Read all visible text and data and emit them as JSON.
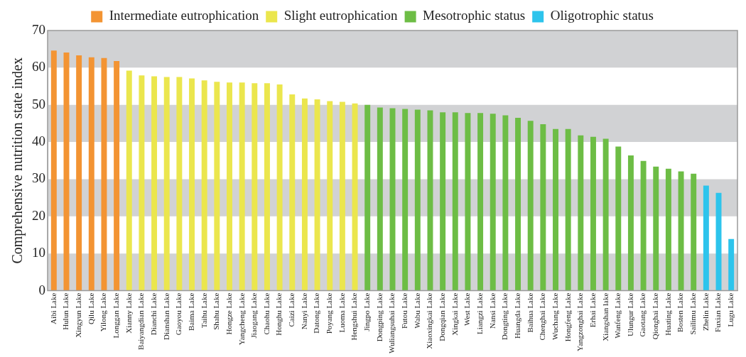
{
  "chart_data": {
    "type": "bar",
    "ylabel": "Comprehensive nutrition state index",
    "categories": [
      "Aibi Lake",
      "Hulun Lake",
      "Xingyun Lake",
      "Qilu Lake",
      "Yilong Lake",
      "Longgan Lake",
      "Xianny Lake",
      "Baiyangdian Lake",
      "Dianchi Lake",
      "Dianshan Lake",
      "Gaoyou Lake",
      "Baima Lake",
      "Taihu Lake",
      "Shahu Lake",
      "Hongze Lake",
      "Yangcheng Lake",
      "Jiaogang Lake",
      "Chaohu Lake",
      "Honghu Lake",
      "Caizi Lake",
      "Nanyi Lake",
      "Datong Lake",
      "Poyang Lake",
      "Luoma Lake",
      "Hengshui Lake",
      "Jingpo Lake",
      "Dongping Lake",
      "Wuliangsuhai Lake",
      "Futou Lake",
      "Wabu Lake",
      "Xiaoxingkai Lake",
      "Dongqian Lake",
      "Xingkai Lake",
      "West Lake",
      "Liangzi Lake",
      "Nansi Lake",
      "Dongting Lake",
      "Huangda Lake",
      "Baihua Lake",
      "Chenghai Lake",
      "Wuchang Lake",
      "Hongfeng Lake",
      "Yangzonghai Lake",
      "Erhai Lake",
      "Xiangshan lake",
      "Wanfeng Lake",
      "Ulungur Lake",
      "Gaotang Lake",
      "Qionghai Lake",
      "Huating Lake",
      "Bosten Lake",
      "Sailimu Lake",
      "Zhelin Lake",
      "Fuxian Lake",
      "Lugu Lake"
    ],
    "series": [
      {
        "name": "Intermediate eutrophication",
        "color": "#f39433",
        "values": [
          64.6,
          64.1,
          63.3,
          62.8,
          62.6,
          61.8,
          null,
          null,
          null,
          null,
          null,
          null,
          null,
          null,
          null,
          null,
          null,
          null,
          null,
          null,
          null,
          null,
          null,
          null,
          null,
          null,
          null,
          null,
          null,
          null,
          null,
          null,
          null,
          null,
          null,
          null,
          null,
          null,
          null,
          null,
          null,
          null,
          null,
          null,
          null,
          null,
          null,
          null,
          null,
          null,
          null,
          null,
          null,
          null,
          null
        ]
      },
      {
        "name": "Slight eutrophication",
        "color": "#ebe64d",
        "values": [
          null,
          null,
          null,
          null,
          null,
          null,
          59.2,
          57.9,
          57.7,
          57.5,
          57.5,
          57.1,
          56.6,
          56.2,
          56.0,
          56.0,
          55.8,
          55.8,
          55.5,
          52.8,
          51.7,
          51.5,
          51.0,
          50.8,
          50.4,
          null,
          null,
          null,
          null,
          null,
          null,
          null,
          null,
          null,
          null,
          null,
          null,
          null,
          null,
          null,
          null,
          null,
          null,
          null,
          null,
          null,
          null,
          null,
          null,
          null,
          null,
          null,
          null,
          null,
          null
        ]
      },
      {
        "name": "Mesotrophic status",
        "color": "#6dbd45",
        "values": [
          null,
          null,
          null,
          null,
          null,
          null,
          null,
          null,
          null,
          null,
          null,
          null,
          null,
          null,
          null,
          null,
          null,
          null,
          null,
          null,
          null,
          null,
          null,
          null,
          null,
          50.0,
          49.3,
          49.1,
          48.9,
          48.7,
          48.5,
          48.0,
          48.0,
          47.8,
          47.8,
          47.6,
          47.2,
          46.5,
          45.7,
          44.8,
          43.5,
          43.5,
          41.8,
          41.4,
          40.9,
          38.8,
          36.4,
          34.9,
          33.4,
          32.8,
          32.1,
          31.5,
          null,
          null,
          null
        ]
      },
      {
        "name": "Oligotrophic status",
        "color": "#2dc4ec",
        "values": [
          null,
          null,
          null,
          null,
          null,
          null,
          null,
          null,
          null,
          null,
          null,
          null,
          null,
          null,
          null,
          null,
          null,
          null,
          null,
          null,
          null,
          null,
          null,
          null,
          null,
          null,
          null,
          null,
          null,
          null,
          null,
          null,
          null,
          null,
          null,
          null,
          null,
          null,
          null,
          null,
          null,
          null,
          null,
          null,
          null,
          null,
          null,
          null,
          null,
          null,
          null,
          null,
          28.3,
          26.3,
          13.9
        ]
      }
    ],
    "ylim": [
      0,
      70
    ],
    "yticks": [
      0,
      10,
      20,
      30,
      40,
      50,
      60,
      70
    ],
    "bands": [
      {
        "axis": "y",
        "from": 0,
        "to": 10,
        "color": "#d1d2d4"
      },
      {
        "axis": "y",
        "from": 20,
        "to": 30,
        "color": "#d1d2d4"
      },
      {
        "axis": "y",
        "from": 40,
        "to": 50,
        "color": "#d1d2d4"
      },
      {
        "axis": "y",
        "from": 60,
        "to": 70,
        "color": "#d1d2d4"
      }
    ],
    "legend": "top"
  }
}
